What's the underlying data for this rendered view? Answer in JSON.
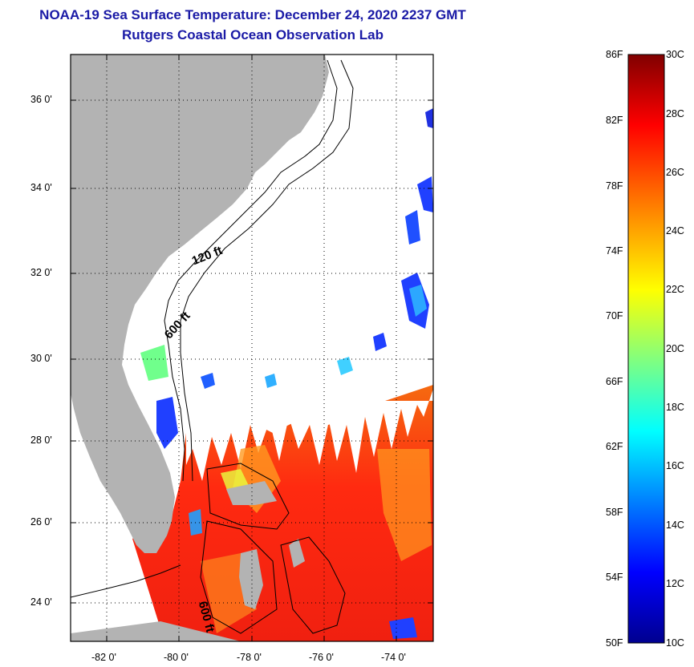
{
  "title": {
    "line1": "NOAA-19 Sea Surface Temperature:  December 24, 2020 2237 GMT",
    "line2": "Rutgers Coastal Ocean Observation Lab"
  },
  "map": {
    "lat_labels": [
      "36 0'",
      "34 0'",
      "32 0'",
      "30 0'",
      "28 0'",
      "26 0'",
      "24 0'"
    ],
    "lon_labels": [
      "-82 0'",
      "-80 0'",
      "-78 0'",
      "-76 0'",
      "-74 0'"
    ],
    "isobath_labels": [
      "120 ft",
      "600 ft",
      "600 ft"
    ],
    "colors": {
      "land": "#b3b3b3",
      "cloud": "#ffffff",
      "frame": "#000000"
    }
  },
  "colorbar": {
    "fahrenheit_labels": [
      "86F",
      "82F",
      "78F",
      "74F",
      "70F",
      "66F",
      "62F",
      "58F",
      "54F",
      "50F"
    ],
    "celsius_labels": [
      "30C",
      "28C",
      "26C",
      "24C",
      "22C",
      "20C",
      "18C",
      "16C",
      "14C",
      "12C",
      "10C"
    ],
    "range_celsius": [
      10,
      30
    ],
    "colormap": [
      "#00008f",
      "#0000ff",
      "#0080ff",
      "#00ffff",
      "#80ff80",
      "#ffff00",
      "#ff8000",
      "#ff0000",
      "#800000"
    ]
  }
}
